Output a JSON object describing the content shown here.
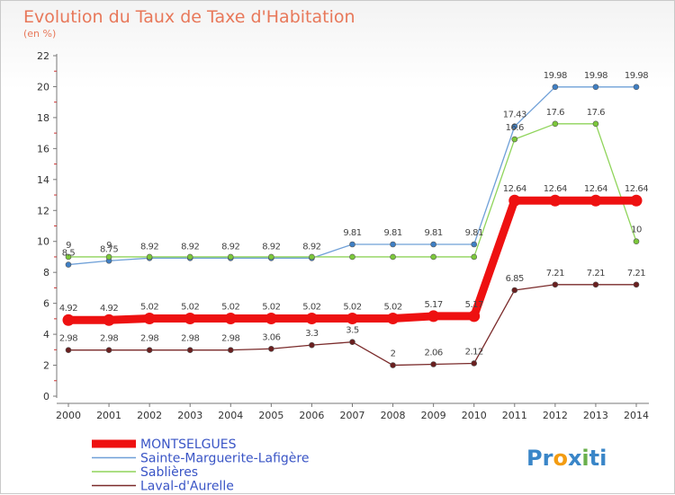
{
  "header": {
    "title": "Evolution du Taux de Taxe d'Habitation",
    "subtitle": "(en %)"
  },
  "logo": {
    "parts": [
      "Pr",
      "o",
      "x",
      "i",
      "ti"
    ],
    "colors": [
      "#3a86c8",
      "#f39c12",
      "#3a86c8",
      "#6ab04c",
      "#3a86c8"
    ]
  },
  "chart_data": {
    "type": "line",
    "x": [
      2000,
      2001,
      2002,
      2003,
      2004,
      2005,
      2006,
      2007,
      2008,
      2009,
      2010,
      2011,
      2012,
      2013,
      2014
    ],
    "ylim": [
      0,
      22
    ],
    "yticks": [
      0,
      2,
      4,
      6,
      8,
      10,
      12,
      14,
      16,
      18,
      20,
      22
    ],
    "grid": false,
    "legend_position": "bottom-left",
    "series": [
      {
        "name": "Sainte-Marguerite-Lafigère",
        "color": "#6fa0d8",
        "marker": "#3f7fc4",
        "width": 1.3,
        "values": [
          8.5,
          8.75,
          8.92,
          8.92,
          8.92,
          8.92,
          8.92,
          9.81,
          9.81,
          9.81,
          9.81,
          17.43,
          19.98,
          19.98,
          19.98
        ],
        "labels": [
          "8.5",
          "8.75",
          "8.92",
          "8.92",
          "8.92",
          "8.92",
          "8.92",
          "9.81",
          "9.81",
          "9.81",
          "9.81",
          "17.43",
          "19.98",
          "19.98",
          "19.98"
        ]
      },
      {
        "name": "Sablières",
        "color": "#8fd45a",
        "marker": "#7cc83a",
        "width": 1.3,
        "values": [
          9,
          9,
          9,
          9,
          9,
          9,
          9,
          9,
          9,
          9,
          9,
          16.6,
          17.6,
          17.6,
          10
        ],
        "labels": [
          "9",
          "9",
          "",
          "",
          "",
          "",
          "",
          "",
          "",
          "",
          "",
          "16.6",
          "17.6",
          "17.6",
          "10"
        ]
      },
      {
        "name": "Laval-d'Aurelle",
        "color": "#7a2a2a",
        "marker": "#6a1f1f",
        "width": 1.3,
        "values": [
          2.98,
          2.98,
          2.98,
          2.98,
          2.98,
          3.06,
          3.3,
          3.5,
          2,
          2.06,
          2.12,
          6.85,
          7.21,
          7.21,
          7.21
        ],
        "labels": [
          "2.98",
          "2.98",
          "2.98",
          "2.98",
          "2.98",
          "3.06",
          "3.3",
          "3.5",
          "2",
          "2.06",
          "2.12",
          "6.85",
          "7.21",
          "7.21",
          "7.21"
        ]
      },
      {
        "name": "MONTSELGUES",
        "color": "#ee1111",
        "marker": "#ee1111",
        "width": 9,
        "values": [
          4.92,
          4.92,
          5.02,
          5.02,
          5.02,
          5.02,
          5.02,
          5.02,
          5.02,
          5.17,
          5.17,
          12.64,
          12.64,
          12.64,
          12.64
        ],
        "labels": [
          "4.92",
          "4.92",
          "5.02",
          "5.02",
          "5.02",
          "5.02",
          "5.02",
          "5.02",
          "5.02",
          "5.17",
          "5.17",
          "12.64",
          "12.64",
          "12.64",
          "12.64"
        ]
      }
    ],
    "legend_order": [
      "MONTSELGUES",
      "Sainte-Marguerite-Lafigère",
      "Sablières",
      "Laval-d'Aurelle"
    ]
  }
}
